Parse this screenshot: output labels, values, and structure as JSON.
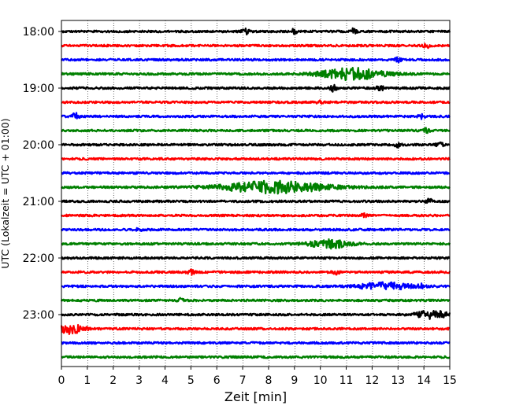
{
  "chart_data": {
    "type": "line",
    "title": "",
    "xlabel": "Zeit  [min]",
    "ylabel": "UTC (Lokalzeit = UTC + 01:00)",
    "xlim": [
      0,
      15
    ],
    "x_ticks": [
      0,
      1,
      2,
      3,
      4,
      5,
      6,
      7,
      8,
      9,
      10,
      11,
      12,
      13,
      14,
      15
    ],
    "y_tick_labels": [
      "18:00",
      "19:00",
      "20:00",
      "21:00",
      "22:00",
      "23:00"
    ],
    "y_tick_trace_index": [
      0,
      4,
      8,
      12,
      16,
      20
    ],
    "trace_interval_min": 15,
    "start_time": "18:00",
    "trace_count": 24,
    "trace_colors": [
      "#000000",
      "#ff0000",
      "#0000ff",
      "#008000"
    ],
    "grid": "vertical dotted lines at each minute",
    "traces": [
      {
        "start": "18:00",
        "color": "#000000",
        "events": [
          {
            "t": 7.1,
            "amp": 0.5
          },
          {
            "t": 9.0,
            "amp": 0.45
          },
          {
            "t": 11.3,
            "amp": 0.5
          }
        ]
      },
      {
        "start": "18:15",
        "color": "#ff0000",
        "events": [
          {
            "t": 14.1,
            "amp": 0.35
          }
        ]
      },
      {
        "start": "18:30",
        "color": "#0000ff",
        "events": [
          {
            "t": 13.0,
            "amp": 0.45
          }
        ]
      },
      {
        "start": "18:45",
        "color": "#008000",
        "events": [
          {
            "t": 11.2,
            "amp": 1.0,
            "dur": 2.4
          }
        ]
      },
      {
        "start": "19:00",
        "color": "#000000",
        "events": [
          {
            "t": 10.5,
            "amp": 0.5
          },
          {
            "t": 12.3,
            "amp": 0.55
          }
        ]
      },
      {
        "start": "19:15",
        "color": "#ff0000",
        "events": [
          {
            "t": 10.0,
            "amp": 0.4
          }
        ]
      },
      {
        "start": "19:30",
        "color": "#0000ff",
        "events": [
          {
            "t": 0.55,
            "amp": 0.6
          },
          {
            "t": 13.9,
            "amp": 0.35
          }
        ]
      },
      {
        "start": "19:45",
        "color": "#008000",
        "events": [
          {
            "t": 14.1,
            "amp": 0.35
          }
        ]
      },
      {
        "start": "20:00",
        "color": "#000000",
        "events": [
          {
            "t": 13.0,
            "amp": 0.4
          },
          {
            "t": 14.6,
            "amp": 0.45
          }
        ]
      },
      {
        "start": "20:15",
        "color": "#ff0000",
        "events": []
      },
      {
        "start": "20:30",
        "color": "#0000ff",
        "events": []
      },
      {
        "start": "20:45",
        "color": "#008000",
        "events": [
          {
            "t": 8.2,
            "amp": 1.0,
            "dur": 4.0
          }
        ]
      },
      {
        "start": "21:00",
        "color": "#000000",
        "events": [
          {
            "t": 14.2,
            "amp": 0.4
          }
        ]
      },
      {
        "start": "21:15",
        "color": "#ff0000",
        "events": [
          {
            "t": 11.7,
            "amp": 0.4
          }
        ]
      },
      {
        "start": "21:30",
        "color": "#0000ff",
        "events": [
          {
            "t": 3.0,
            "amp": 0.3
          }
        ]
      },
      {
        "start": "21:45",
        "color": "#008000",
        "events": [
          {
            "t": 10.4,
            "amp": 0.7,
            "dur": 1.6
          }
        ]
      },
      {
        "start": "22:00",
        "color": "#000000",
        "events": []
      },
      {
        "start": "22:15",
        "color": "#ff0000",
        "events": [
          {
            "t": 5.0,
            "amp": 0.45
          },
          {
            "t": 10.6,
            "amp": 0.35
          }
        ]
      },
      {
        "start": "22:30",
        "color": "#0000ff",
        "events": [
          {
            "t": 12.5,
            "amp": 0.6,
            "dur": 2.0
          },
          {
            "t": 13.9,
            "amp": 0.45
          }
        ]
      },
      {
        "start": "22:45",
        "color": "#008000",
        "events": [
          {
            "t": 4.6,
            "amp": 0.3
          }
        ]
      },
      {
        "start": "23:00",
        "color": "#000000",
        "events": [
          {
            "t": 14.3,
            "amp": 0.7,
            "dur": 1.2
          }
        ]
      },
      {
        "start": "23:15",
        "color": "#ff0000",
        "events": [
          {
            "t": 0.35,
            "amp": 0.85,
            "dur": 1.0
          }
        ]
      },
      {
        "start": "23:30",
        "color": "#0000ff",
        "events": []
      },
      {
        "start": "23:45",
        "color": "#008000",
        "events": []
      }
    ]
  }
}
